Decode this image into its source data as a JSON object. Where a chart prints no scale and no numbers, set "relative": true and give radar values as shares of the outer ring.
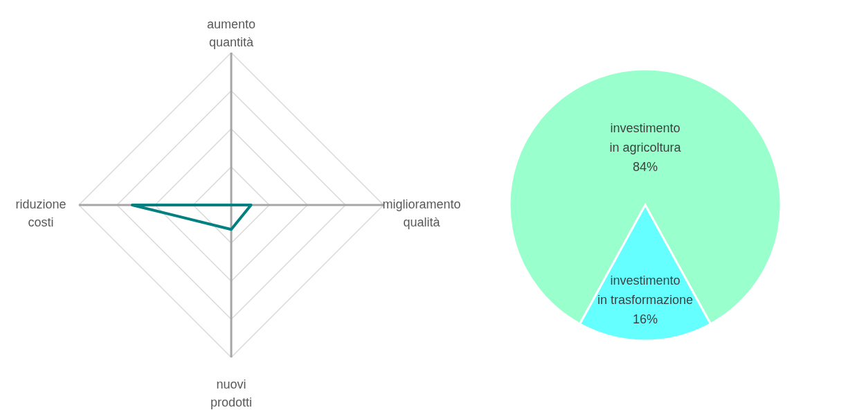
{
  "chart_data": [
    {
      "type": "radar",
      "categories": [
        "aumento quantità",
        "miglioramento qualità",
        "nuovi prodotti",
        "riduzione costi"
      ],
      "relative": true,
      "grid": true,
      "series": [
        {
          "color": "#008080",
          "values": [
            0,
            0.13,
            0.16,
            0.65
          ]
        }
      ]
    },
    {
      "type": "pie",
      "categories": [
        "investimento in agricoltura",
        "investimento in trasformazione"
      ],
      "values": [
        84,
        16
      ],
      "colors": [
        "#99ffcc",
        "#66ffff"
      ],
      "value_labels": [
        "84%",
        "16%"
      ]
    }
  ]
}
